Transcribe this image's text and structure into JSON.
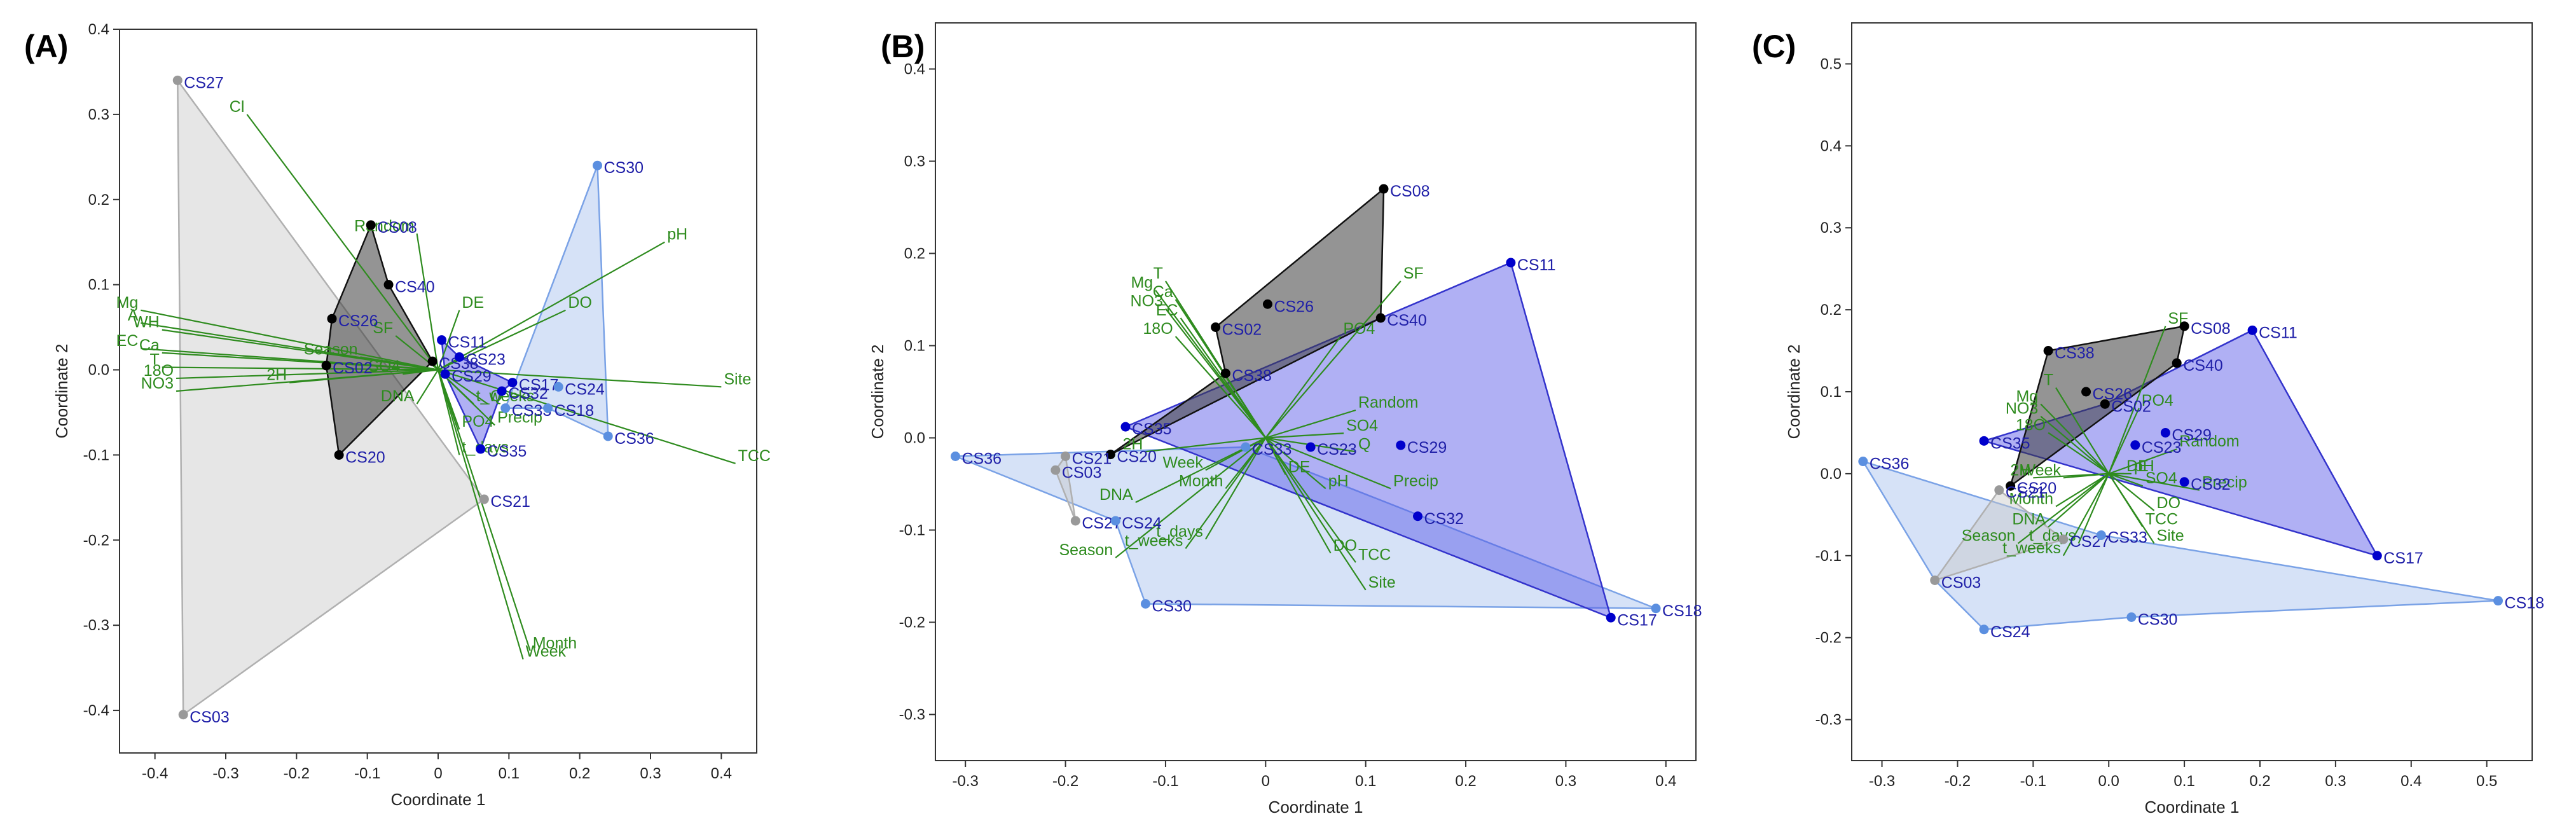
{
  "figure": {
    "xlabel": "Coordinate 1",
    "ylabel": "Coordinate 2",
    "colors": {
      "black_group": "#000000",
      "blue_group": "#0000cc",
      "lightblue_group": "#5b8fe0",
      "gray_group": "#999999",
      "vector": "#2e8b1e",
      "label": "#1f1fa8"
    }
  },
  "chart_data": [
    {
      "type": "scatter",
      "panel_label": "(A)",
      "xlim": [
        -0.45,
        0.45
      ],
      "ylim": [
        -0.45,
        0.4
      ],
      "xticks": [
        -0.4,
        -0.3,
        -0.2,
        -0.1,
        0.0,
        0.1,
        0.2,
        0.3,
        0.4
      ],
      "xtick_labels": [
        "-0.4",
        "-0.3",
        "-0.2",
        "-0.1",
        "0",
        "0.1",
        "0.2",
        "0.3",
        "0.4"
      ],
      "yticks": [
        -0.4,
        -0.3,
        -0.2,
        -0.1,
        0.0,
        0.1,
        0.2,
        0.3,
        0.4
      ],
      "ytick_labels": [
        "-0.4",
        "-0.3",
        "-0.2",
        "-0.1",
        "0.0",
        "0.1",
        "0.2",
        "0.3",
        "0.4"
      ],
      "points": [
        {
          "label": "CS27",
          "x": -0.368,
          "y": 0.34,
          "group": "gray"
        },
        {
          "label": "CS03",
          "x": -0.36,
          "y": -0.405,
          "group": "gray"
        },
        {
          "label": "CS21",
          "x": 0.065,
          "y": -0.152,
          "group": "gray"
        },
        {
          "label": "CS08",
          "x": -0.095,
          "y": 0.17,
          "group": "black"
        },
        {
          "label": "CS40",
          "x": -0.07,
          "y": 0.1,
          "group": "black"
        },
        {
          "label": "CS26",
          "x": -0.15,
          "y": 0.06,
          "group": "black"
        },
        {
          "label": "CS02",
          "x": -0.158,
          "y": 0.005,
          "group": "black"
        },
        {
          "label": "CS20",
          "x": -0.14,
          "y": -0.1,
          "group": "black"
        },
        {
          "label": "CS38",
          "x": -0.008,
          "y": 0.01,
          "group": "black"
        },
        {
          "label": "CS11",
          "x": 0.005,
          "y": 0.035,
          "group": "blue"
        },
        {
          "label": "CS23",
          "x": 0.03,
          "y": 0.015,
          "group": "blue"
        },
        {
          "label": "CS29",
          "x": 0.01,
          "y": -0.005,
          "group": "blue"
        },
        {
          "label": "CS32",
          "x": 0.09,
          "y": -0.025,
          "group": "blue"
        },
        {
          "label": "CS17",
          "x": 0.105,
          "y": -0.015,
          "group": "blue"
        },
        {
          "label": "CS35",
          "x": 0.06,
          "y": -0.093,
          "group": "blue"
        },
        {
          "label": "CS30",
          "x": 0.225,
          "y": 0.24,
          "group": "lightblue"
        },
        {
          "label": "CS24",
          "x": 0.17,
          "y": -0.02,
          "group": "lightblue"
        },
        {
          "label": "CS33",
          "x": 0.095,
          "y": -0.045,
          "group": "lightblue"
        },
        {
          "label": "CS18",
          "x": 0.155,
          "y": -0.045,
          "group": "lightblue"
        },
        {
          "label": "CS36",
          "x": 0.24,
          "y": -0.078,
          "group": "lightblue"
        }
      ],
      "hulls": [
        {
          "group": "gray",
          "vertices": [
            "CS27",
            "CS21",
            "CS03"
          ]
        },
        {
          "group": "black",
          "vertices": [
            "CS08",
            "CS40",
            "CS38",
            "CS20",
            "CS02",
            "CS26"
          ]
        },
        {
          "group": "blue",
          "vertices": [
            "CS11",
            "CS23",
            "CS17",
            "CS32",
            "CS35",
            "CS29"
          ]
        },
        {
          "group": "lightblue",
          "vertices": [
            "CS30",
            "CS36",
            "CS18",
            "CS33"
          ]
        }
      ],
      "vectors": [
        {
          "label": "Cl",
          "x": -0.27,
          "y": 0.3
        },
        {
          "label": "Random",
          "x": -0.03,
          "y": 0.16
        },
        {
          "label": "pH",
          "x": 0.32,
          "y": 0.15
        },
        {
          "label": "DE",
          "x": 0.03,
          "y": 0.07
        },
        {
          "label": "DO",
          "x": 0.18,
          "y": 0.07
        },
        {
          "label": "Mg",
          "x": -0.42,
          "y": 0.07
        },
        {
          "label": "A",
          "x": -0.42,
          "y": 0.055
        },
        {
          "label": "WH",
          "x": -0.39,
          "y": 0.047
        },
        {
          "label": "EC",
          "x": -0.42,
          "y": 0.025
        },
        {
          "label": "Ca",
          "x": -0.39,
          "y": 0.02
        },
        {
          "label": "T",
          "x": -0.39,
          "y": 0.003
        },
        {
          "label": "18O",
          "x": -0.37,
          "y": -0.01
        },
        {
          "label": "NO3",
          "x": -0.37,
          "y": -0.025
        },
        {
          "label": "2H",
          "x": -0.21,
          "y": -0.015
        },
        {
          "label": "SF",
          "x": -0.06,
          "y": 0.04
        },
        {
          "label": "Season",
          "x": -0.11,
          "y": 0.015
        },
        {
          "label": "SO4",
          "x": -0.05,
          "y": -0.005
        },
        {
          "label": "DNA",
          "x": -0.03,
          "y": -0.04
        },
        {
          "label": "t_weeks",
          "x": 0.05,
          "y": -0.04
        },
        {
          "label": "Q",
          "x": 0.07,
          "y": -0.04
        },
        {
          "label": "PO4",
          "x": 0.03,
          "y": -0.07
        },
        {
          "label": "Precip",
          "x": 0.08,
          "y": -0.065
        },
        {
          "label": "t_days",
          "x": 0.03,
          "y": -0.1
        },
        {
          "label": "Site",
          "x": 0.4,
          "y": -0.02
        },
        {
          "label": "TCC",
          "x": 0.42,
          "y": -0.11
        },
        {
          "label": "Month",
          "x": 0.13,
          "y": -0.33
        },
        {
          "label": "Week",
          "x": 0.12,
          "y": -0.34
        }
      ]
    },
    {
      "type": "scatter",
      "panel_label": "(B)",
      "xlim": [
        -0.33,
        0.43
      ],
      "ylim": [
        -0.35,
        0.45
      ],
      "xticks": [
        -0.3,
        -0.2,
        -0.1,
        0.0,
        0.1,
        0.2,
        0.3,
        0.4
      ],
      "xtick_labels": [
        "-0.3",
        "-0.2",
        "-0.1",
        "0",
        "0.1",
        "0.2",
        "0.3",
        "0.4"
      ],
      "yticks": [
        -0.3,
        -0.2,
        -0.1,
        0.0,
        0.1,
        0.2,
        0.3,
        0.4
      ],
      "ytick_labels": [
        "-0.3",
        "-0.2",
        "-0.1",
        "0.0",
        "0.1",
        "0.2",
        "0.3",
        "0.4"
      ],
      "points": [
        {
          "label": "CS08",
          "x": 0.118,
          "y": 0.27,
          "group": "black"
        },
        {
          "label": "CS26",
          "x": 0.002,
          "y": 0.145,
          "group": "black"
        },
        {
          "label": "CS02",
          "x": -0.05,
          "y": 0.12,
          "group": "black"
        },
        {
          "label": "CS40",
          "x": 0.115,
          "y": 0.13,
          "group": "black"
        },
        {
          "label": "CS38",
          "x": -0.04,
          "y": 0.07,
          "group": "black"
        },
        {
          "label": "CS20",
          "x": -0.155,
          "y": -0.018,
          "group": "black"
        },
        {
          "label": "CS21",
          "x": -0.2,
          "y": -0.02,
          "group": "gray"
        },
        {
          "label": "CS03",
          "x": -0.21,
          "y": -0.035,
          "group": "gray"
        },
        {
          "label": "CS27",
          "x": -0.19,
          "y": -0.09,
          "group": "gray"
        },
        {
          "label": "CS11",
          "x": 0.245,
          "y": 0.19,
          "group": "blue"
        },
        {
          "label": "CS35",
          "x": -0.14,
          "y": 0.012,
          "group": "blue"
        },
        {
          "label": "CS23",
          "x": 0.045,
          "y": -0.01,
          "group": "blue"
        },
        {
          "label": "CS29",
          "x": 0.135,
          "y": -0.008,
          "group": "blue"
        },
        {
          "label": "CS32",
          "x": 0.152,
          "y": -0.085,
          "group": "blue"
        },
        {
          "label": "CS17",
          "x": 0.345,
          "y": -0.195,
          "group": "blue"
        },
        {
          "label": "CS36",
          "x": -0.31,
          "y": -0.02,
          "group": "lightblue"
        },
        {
          "label": "CS33",
          "x": -0.02,
          "y": -0.01,
          "group": "lightblue"
        },
        {
          "label": "CS24",
          "x": -0.15,
          "y": -0.09,
          "group": "lightblue"
        },
        {
          "label": "CS30",
          "x": -0.12,
          "y": -0.18,
          "group": "lightblue"
        },
        {
          "label": "CS18",
          "x": 0.39,
          "y": -0.185,
          "group": "lightblue"
        }
      ],
      "hulls": [
        {
          "group": "lightblue",
          "vertices": [
            "CS36",
            "CS33",
            "CS18",
            "CS30",
            "CS24"
          ]
        },
        {
          "group": "blue",
          "vertices": [
            "CS11",
            "CS17",
            "CS35"
          ]
        },
        {
          "group": "black",
          "vertices": [
            "CS08",
            "CS40",
            "CS20",
            "CS38",
            "CS02"
          ]
        },
        {
          "group": "gray",
          "vertices": [
            "CS21",
            "CS27",
            "CS03"
          ]
        }
      ],
      "vectors": [
        {
          "label": "Mg",
          "x": -0.11,
          "y": 0.16
        },
        {
          "label": "T",
          "x": -0.1,
          "y": 0.17
        },
        {
          "label": "NO3",
          "x": -0.1,
          "y": 0.14
        },
        {
          "label": "Ca",
          "x": -0.09,
          "y": 0.15
        },
        {
          "label": "EC",
          "x": -0.085,
          "y": 0.13
        },
        {
          "label": "18O",
          "x": -0.09,
          "y": 0.11
        },
        {
          "label": "SF",
          "x": 0.135,
          "y": 0.17
        },
        {
          "label": "PO4",
          "x": 0.075,
          "y": 0.11
        },
        {
          "label": "Random",
          "x": 0.09,
          "y": 0.03
        },
        {
          "label": "SO4",
          "x": 0.078,
          "y": 0.005
        },
        {
          "label": "Q",
          "x": 0.09,
          "y": -0.015
        },
        {
          "label": "Precip",
          "x": 0.125,
          "y": -0.055
        },
        {
          "label": "pH",
          "x": 0.06,
          "y": -0.055
        },
        {
          "label": "DE",
          "x": 0.02,
          "y": -0.04
        },
        {
          "label": "DO",
          "x": 0.065,
          "y": -0.125
        },
        {
          "label": "TCC",
          "x": 0.09,
          "y": -0.135
        },
        {
          "label": "Site",
          "x": 0.1,
          "y": -0.165
        },
        {
          "label": "Week",
          "x": -0.06,
          "y": -0.035
        },
        {
          "label": "Month",
          "x": -0.04,
          "y": -0.055
        },
        {
          "label": "2H",
          "x": -0.12,
          "y": -0.015
        },
        {
          "label": "DNA",
          "x": -0.13,
          "y": -0.07
        },
        {
          "label": "t_days",
          "x": -0.06,
          "y": -0.11
        },
        {
          "label": "t_weeks",
          "x": -0.08,
          "y": -0.12
        },
        {
          "label": "Season",
          "x": -0.15,
          "y": -0.13
        }
      ]
    },
    {
      "type": "scatter",
      "panel_label": "(C)",
      "xlim": [
        -0.34,
        0.56
      ],
      "ylim": [
        -0.35,
        0.55
      ],
      "xticks": [
        -0.3,
        -0.2,
        -0.1,
        0.0,
        0.1,
        0.2,
        0.3,
        0.4,
        0.5
      ],
      "xtick_labels": [
        "-0.3",
        "-0.2",
        "-0.1",
        "0.0",
        "0.1",
        "0.2",
        "0.3",
        "0.4",
        "0.5"
      ],
      "yticks": [
        -0.3,
        -0.2,
        -0.1,
        0.0,
        0.1,
        0.2,
        0.3,
        0.4,
        0.5
      ],
      "ytick_labels": [
        "-0.3",
        "-0.2",
        "-0.1",
        "0.0",
        "0.1",
        "0.2",
        "0.3",
        "0.4",
        "0.5"
      ],
      "points": [
        {
          "label": "CS08",
          "x": 0.1,
          "y": 0.18,
          "group": "black"
        },
        {
          "label": "CS40",
          "x": 0.09,
          "y": 0.135,
          "group": "black"
        },
        {
          "label": "CS38",
          "x": -0.08,
          "y": 0.15,
          "group": "black"
        },
        {
          "label": "CS26",
          "x": -0.03,
          "y": 0.1,
          "group": "black"
        },
        {
          "label": "CS02",
          "x": -0.005,
          "y": 0.085,
          "group": "black"
        },
        {
          "label": "CS20",
          "x": -0.13,
          "y": -0.015,
          "group": "black"
        },
        {
          "label": "CS03",
          "x": -0.23,
          "y": -0.13,
          "group": "gray"
        },
        {
          "label": "CS21",
          "x": -0.145,
          "y": -0.02,
          "group": "gray"
        },
        {
          "label": "CS27",
          "x": -0.06,
          "y": -0.08,
          "group": "gray"
        },
        {
          "label": "CS11",
          "x": 0.19,
          "y": 0.175,
          "group": "blue"
        },
        {
          "label": "CS35",
          "x": -0.165,
          "y": 0.04,
          "group": "blue"
        },
        {
          "label": "CS23",
          "x": 0.035,
          "y": 0.035,
          "group": "blue"
        },
        {
          "label": "CS29",
          "x": 0.075,
          "y": 0.05,
          "group": "blue"
        },
        {
          "label": "CS32",
          "x": 0.1,
          "y": -0.01,
          "group": "blue"
        },
        {
          "label": "CS17",
          "x": 0.355,
          "y": -0.1,
          "group": "blue"
        },
        {
          "label": "CS36",
          "x": -0.325,
          "y": 0.015,
          "group": "lightblue"
        },
        {
          "label": "CS33",
          "x": -0.01,
          "y": -0.075,
          "group": "lightblue"
        },
        {
          "label": "CS24",
          "x": -0.165,
          "y": -0.19,
          "group": "lightblue"
        },
        {
          "label": "CS30",
          "x": 0.03,
          "y": -0.175,
          "group": "lightblue"
        },
        {
          "label": "CS18",
          "x": 0.515,
          "y": -0.155,
          "group": "lightblue"
        }
      ],
      "hulls": [
        {
          "group": "lightblue",
          "vertices": [
            "CS36",
            "CS33",
            "CS18",
            "CS30",
            "CS24",
            "CS03"
          ]
        },
        {
          "group": "blue",
          "vertices": [
            "CS11",
            "CS17",
            "CS35",
            "CS02"
          ]
        },
        {
          "group": "black",
          "vertices": [
            "CS38",
            "CS08",
            "CS40",
            "CS20"
          ]
        },
        {
          "group": "gray",
          "vertices": [
            "CS21",
            "CS27",
            "CS03"
          ]
        }
      ],
      "vectors": [
        {
          "label": "SF",
          "x": 0.075,
          "y": 0.18
        },
        {
          "label": "PO4",
          "x": 0.04,
          "y": 0.08
        },
        {
          "label": "T",
          "x": -0.07,
          "y": 0.105
        },
        {
          "label": "Mg",
          "x": -0.09,
          "y": 0.085
        },
        {
          "label": "NO3",
          "x": -0.09,
          "y": 0.07
        },
        {
          "label": "18O",
          "x": -0.08,
          "y": 0.05
        },
        {
          "label": "Random",
          "x": 0.09,
          "y": 0.03
        },
        {
          "label": "DE",
          "x": 0.02,
          "y": 0.0
        },
        {
          "label": "pH",
          "x": 0.03,
          "y": 0.0
        },
        {
          "label": "SO4",
          "x": 0.045,
          "y": -0.015
        },
        {
          "label": "Precip",
          "x": 0.12,
          "y": -0.02
        },
        {
          "label": "DO",
          "x": 0.06,
          "y": -0.045
        },
        {
          "label": "TCC",
          "x": 0.045,
          "y": -0.065
        },
        {
          "label": "Site",
          "x": 0.06,
          "y": -0.085
        },
        {
          "label": "2H",
          "x": -0.1,
          "y": -0.005
        },
        {
          "label": "Week",
          "x": -0.06,
          "y": -0.005
        },
        {
          "label": "Month",
          "x": -0.07,
          "y": -0.04
        },
        {
          "label": "DNA",
          "x": -0.08,
          "y": -0.065
        },
        {
          "label": "Season",
          "x": -0.12,
          "y": -0.085
        },
        {
          "label": "t_days",
          "x": -0.04,
          "y": -0.085
        },
        {
          "label": "t_weeks",
          "x": -0.06,
          "y": -0.1
        }
      ]
    }
  ]
}
